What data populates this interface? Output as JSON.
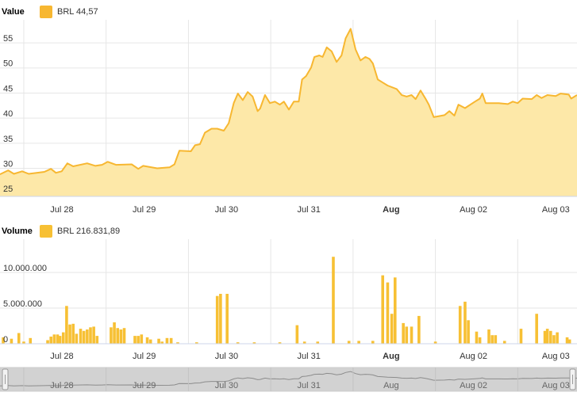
{
  "chart_data": [
    {
      "type": "area",
      "title": "Value",
      "x": [
        -0.29,
        -0.19,
        -0.12,
        -0.02,
        0.06,
        0.25,
        0.33,
        0.39,
        0.46,
        0.53,
        0.6,
        0.77,
        0.87,
        0.95,
        1.02,
        1.12,
        1.31,
        1.39,
        1.45,
        1.62,
        1.77,
        1.83,
        1.89,
        2.03,
        2.08,
        2.14,
        2.2,
        2.28,
        2.35,
        2.43,
        2.49,
        2.55,
        2.6,
        2.66,
        2.72,
        2.78,
        2.84,
        2.87,
        2.93,
        2.99,
        3.05,
        3.11,
        3.16,
        3.22,
        3.28,
        3.34,
        3.38,
        3.43,
        3.49,
        3.53,
        3.59,
        3.63,
        3.68,
        3.74,
        3.8,
        3.86,
        3.91,
        3.97,
        4.03,
        4.09,
        4.15,
        4.2,
        4.24,
        4.3,
        4.36,
        4.42,
        4.53,
        4.59,
        4.65,
        4.71,
        4.76,
        4.82,
        4.88,
        4.92,
        4.98,
        5.11,
        5.17,
        5.23,
        5.28,
        5.36,
        5.48,
        5.54,
        5.57,
        5.61,
        5.77,
        5.88,
        5.94,
        6.0,
        6.06,
        6.17,
        6.23,
        6.29,
        6.36,
        6.46,
        6.52,
        6.62,
        6.65,
        6.72
      ],
      "series": [
        {
          "name": "BRL 44,57",
          "color": "#f7b731",
          "fill": "#fde8a8",
          "values": [
            28.8,
            29.6,
            28.9,
            29.4,
            28.9,
            29.3,
            29.9,
            29.1,
            29.4,
            31.0,
            30.4,
            31.0,
            30.5,
            30.7,
            31.3,
            30.7,
            30.8,
            29.9,
            30.5,
            30.0,
            30.2,
            30.8,
            33.5,
            33.4,
            34.6,
            34.8,
            37.1,
            37.9,
            37.9,
            37.5,
            39.0,
            43.0,
            44.9,
            43.6,
            45.2,
            44.3,
            41.4,
            41.9,
            44.6,
            43.0,
            43.3,
            42.7,
            43.3,
            41.7,
            43.3,
            43.3,
            47.7,
            48.4,
            50.1,
            52.2,
            52.5,
            52.2,
            54.1,
            53.3,
            51.2,
            52.5,
            55.9,
            57.8,
            53.7,
            51.5,
            52.2,
            51.8,
            50.9,
            47.7,
            47.1,
            46.5,
            45.8,
            44.6,
            44.3,
            44.6,
            43.8,
            45.5,
            43.9,
            42.7,
            40.2,
            40.6,
            41.4,
            40.5,
            42.7,
            42.0,
            43.3,
            43.9,
            44.9,
            43.0,
            43.0,
            42.8,
            43.3,
            43.0,
            43.9,
            43.8,
            44.6,
            44.0,
            44.6,
            44.4,
            44.9,
            44.7,
            43.9,
            44.6
          ]
        }
      ],
      "xlim": [
        -0.289,
        6.72
      ],
      "xticks": [
        {
          "value": 0,
          "label": "Jul 28"
        },
        {
          "value": 1,
          "label": "Jul 29"
        },
        {
          "value": 2,
          "label": "Jul 30"
        },
        {
          "value": 3,
          "label": "Jul 31"
        },
        {
          "value": 4,
          "label": "Aug",
          "bold": true
        },
        {
          "value": 5,
          "label": "Aug 02"
        },
        {
          "value": 6,
          "label": "Aug 03"
        }
      ],
      "ylim": [
        24.4,
        59.6
      ],
      "yticks": [
        25,
        30,
        35,
        40,
        45,
        50,
        55
      ],
      "grid": true
    },
    {
      "type": "bar",
      "title": "Volume",
      "x": [
        -0.25,
        -0.15,
        -0.06,
        0.0,
        0.08,
        0.29,
        0.33,
        0.37,
        0.41,
        0.44,
        0.48,
        0.52,
        0.56,
        0.6,
        0.64,
        0.69,
        0.73,
        0.77,
        0.81,
        0.85,
        0.89,
        1.06,
        1.1,
        1.14,
        1.18,
        1.22,
        1.35,
        1.39,
        1.43,
        1.5,
        1.54,
        1.64,
        1.68,
        1.74,
        1.79,
        1.87,
        2.1,
        2.35,
        2.39,
        2.47,
        2.6,
        2.8,
        3.11,
        3.32,
        3.41,
        3.57,
        3.76,
        3.95,
        4.07,
        4.24,
        4.36,
        4.42,
        4.47,
        4.51,
        4.61,
        4.65,
        4.71,
        4.8,
        5.0,
        5.3,
        5.36,
        5.4,
        5.5,
        5.54,
        5.65,
        5.69,
        5.73,
        5.84,
        6.04,
        6.23,
        6.33,
        6.36,
        6.4,
        6.44,
        6.48,
        6.6,
        6.63
      ],
      "series": [
        {
          "name": "BRL 216.831,89",
          "color": "#f7c034",
          "values": [
            900000,
            700000,
            1500000,
            300000,
            800000,
            500000,
            1000000,
            1300000,
            1300000,
            1100000,
            1600000,
            5300000,
            2700000,
            2800000,
            1400000,
            2100000,
            1800000,
            2000000,
            2300000,
            2400000,
            1100000,
            2300000,
            3000000,
            2200000,
            2000000,
            2200000,
            1100000,
            1100000,
            1300000,
            900000,
            600000,
            700000,
            300000,
            800000,
            800000,
            200000,
            200000,
            6700000,
            7000000,
            7000000,
            200000,
            200000,
            200000,
            2600000,
            300000,
            300000,
            12200000,
            400000,
            400000,
            400000,
            9600000,
            8600000,
            4200000,
            9300000,
            2900000,
            2400000,
            2400000,
            3900000,
            300000,
            5300000,
            5900000,
            3300000,
            1700000,
            900000,
            2000000,
            1200000,
            1200000,
            400000,
            2100000,
            4200000,
            1800000,
            2100000,
            1800000,
            1200000,
            1600000,
            900000,
            600000
          ]
        }
      ],
      "xlim": [
        -0.289,
        6.72
      ],
      "xticks": [
        {
          "value": 0,
          "label": "Jul 28"
        },
        {
          "value": 1,
          "label": "Jul 29"
        },
        {
          "value": 2,
          "label": "Jul 30"
        },
        {
          "value": 3,
          "label": "Jul 31"
        },
        {
          "value": 4,
          "label": "Aug",
          "bold": true
        },
        {
          "value": 5,
          "label": "Aug 02"
        },
        {
          "value": 6,
          "label": "Aug 03"
        }
      ],
      "ylim": [
        0,
        14670000
      ],
      "yticks": [
        0,
        {
          "value": 5000000,
          "label": "5.000.000"
        },
        {
          "value": 10000000,
          "label": "10.000.000"
        }
      ],
      "grid": true
    }
  ]
}
